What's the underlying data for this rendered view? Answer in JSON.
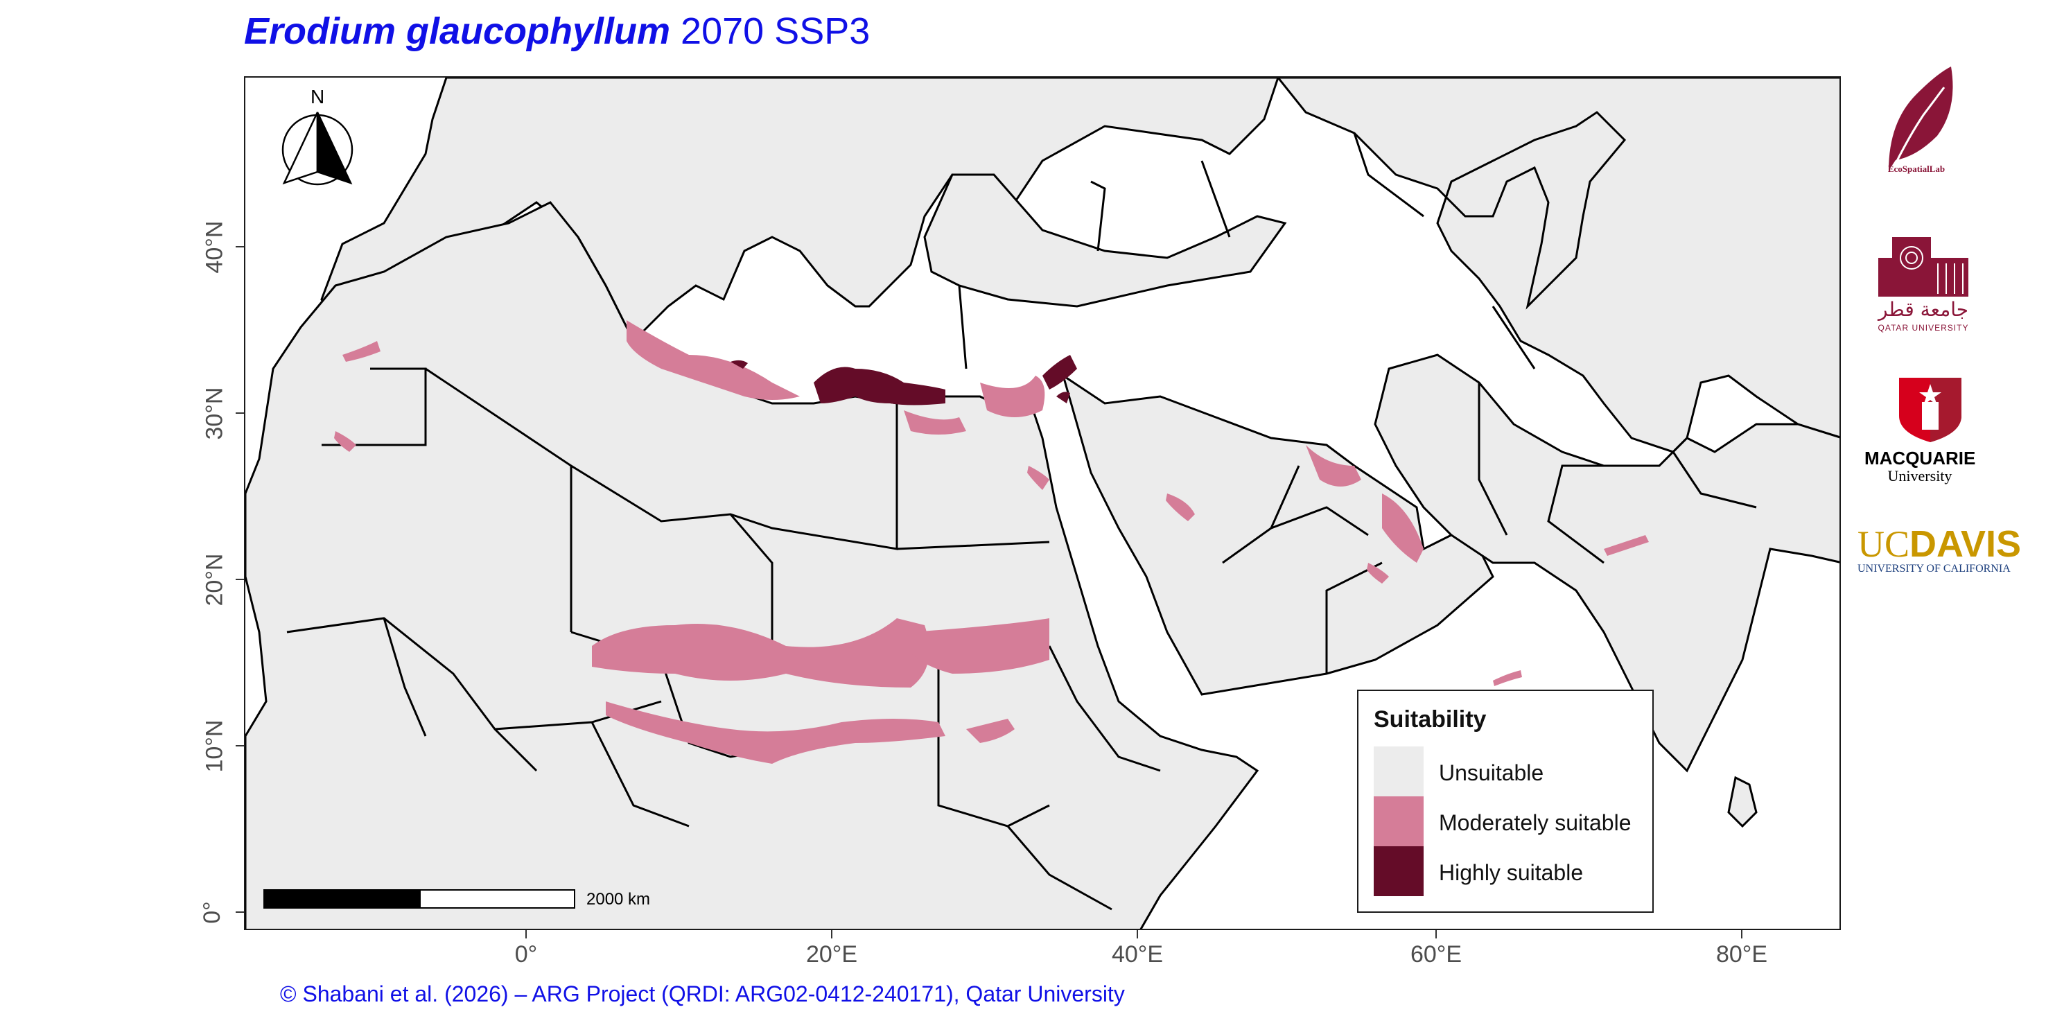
{
  "title": {
    "species": "Erodium glaucophyllum",
    "scenario": " 2070 SSP3"
  },
  "north_arrow": {
    "label": "N"
  },
  "axes": {
    "y_ticks": [
      "40°N",
      "30°N",
      "20°N",
      "10°N",
      "0°"
    ],
    "x_ticks": [
      "0°",
      "20°E",
      "40°E",
      "60°E",
      "80°E"
    ]
  },
  "scale_bar": {
    "label": "2000 km"
  },
  "legend": {
    "title": "Suitability",
    "items": [
      {
        "label": "Unsuitable",
        "color": "#ececec"
      },
      {
        "label": "Moderately suitable",
        "color": "#d57d98"
      },
      {
        "label": "Highly suitable",
        "color": "#640c28"
      }
    ]
  },
  "credit": "© Shabani et al. (2026) – ARG Project (QRDI: ARG02-0412-240171), Qatar University",
  "logos": {
    "ecospatial": "EcoSpatialLab",
    "qatar_ar": "جامعة قطر",
    "qatar_en": "QATAR UNIVERSITY",
    "macquarie_1": "MACQUARIE",
    "macquarie_2": "University",
    "ucdavis_1": "UC",
    "ucdavis_2": "DAVIS",
    "ucdavis_3": "UNIVERSITY OF CALIFORNIA"
  },
  "colors": {
    "title": "#1010e6",
    "land": "#ececec",
    "sea": "#ffffff",
    "border": "#000000",
    "moderate": "#d57d98",
    "high": "#640c28",
    "qatar_maroon": "#8a1538",
    "ucdavis_gold": "#c99700"
  }
}
